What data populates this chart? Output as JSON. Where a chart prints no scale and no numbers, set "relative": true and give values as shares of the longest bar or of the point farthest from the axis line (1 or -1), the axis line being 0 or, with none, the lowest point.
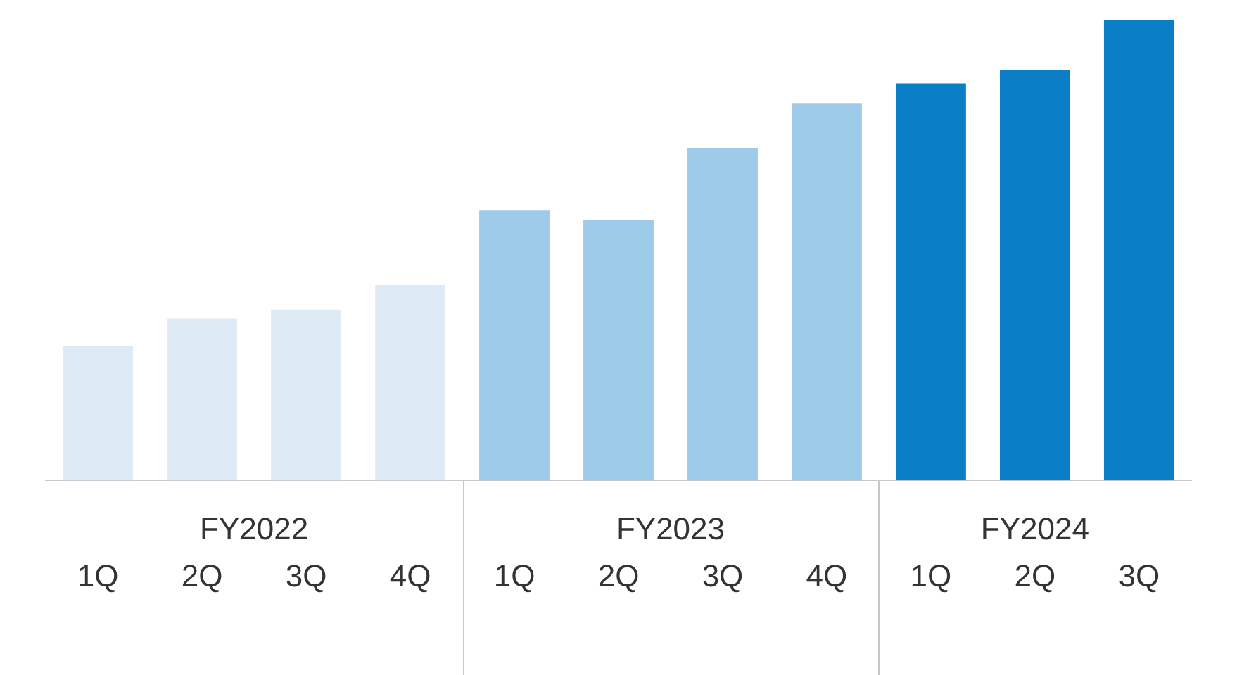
{
  "chart_data": {
    "type": "bar",
    "relative": true,
    "categories": [
      "1Q",
      "2Q",
      "3Q",
      "4Q",
      "1Q",
      "2Q",
      "3Q",
      "4Q",
      "1Q",
      "2Q",
      "3Q"
    ],
    "values": [
      0.292,
      0.352,
      0.37,
      0.424,
      0.586,
      0.565,
      0.721,
      0.818,
      0.862,
      0.891,
      1
    ],
    "colors": [
      "#deebf7",
      "#deebf7",
      "#deebf7",
      "#deebf7",
      "#9fcbeb",
      "#9fcbeb",
      "#9fcbeb",
      "#9fcbeb",
      "#0a7fc7",
      "#0a7fc7",
      "#0a7fc7"
    ],
    "annotations": [
      "FY2022",
      "FY2023",
      "FY2024"
    ],
    "grid": false,
    "legend": false
  }
}
